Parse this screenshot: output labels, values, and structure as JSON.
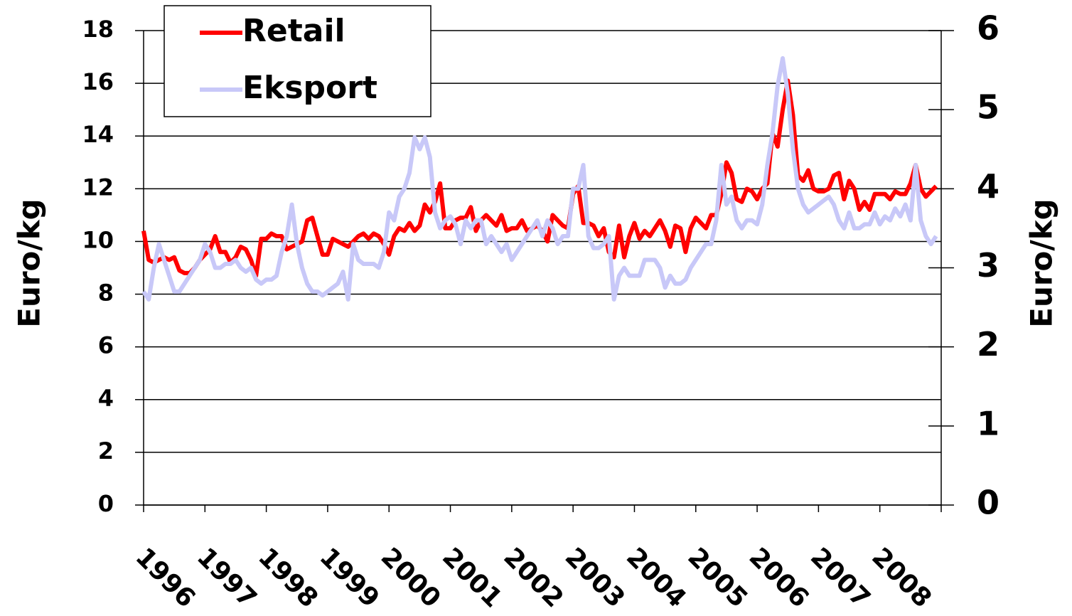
{
  "chart_data": {
    "type": "line",
    "categories": [
      "1996",
      null,
      null,
      null,
      null,
      null,
      null,
      null,
      null,
      null,
      null,
      null,
      "1997",
      null,
      null,
      null,
      null,
      null,
      null,
      null,
      null,
      null,
      null,
      null,
      "1998",
      null,
      null,
      null,
      null,
      null,
      null,
      null,
      null,
      null,
      null,
      null,
      "1999",
      null,
      null,
      null,
      null,
      null,
      null,
      null,
      null,
      null,
      null,
      null,
      "2000",
      null,
      null,
      null,
      null,
      null,
      null,
      null,
      null,
      null,
      null,
      null,
      "2001",
      null,
      null,
      null,
      null,
      null,
      null,
      null,
      null,
      null,
      null,
      null,
      "2002",
      null,
      null,
      null,
      null,
      null,
      null,
      null,
      null,
      null,
      null,
      null,
      "2003",
      null,
      null,
      null,
      null,
      null,
      null,
      null,
      null,
      null,
      null,
      null,
      "2004",
      null,
      null,
      null,
      null,
      null,
      null,
      null,
      null,
      null,
      null,
      null,
      "2005",
      null,
      null,
      null,
      null,
      null,
      null,
      null,
      null,
      null,
      null,
      null,
      "2006",
      null,
      null,
      null,
      null,
      null,
      null,
      null,
      null,
      null,
      null,
      null,
      "2007",
      null,
      null,
      null,
      null,
      null,
      null,
      null,
      null,
      null,
      null,
      null,
      "2008",
      null,
      null,
      null,
      null,
      null,
      null,
      null,
      null,
      null,
      null,
      null
    ],
    "series": [
      {
        "name": "Retail",
        "color": "#ff0000",
        "values": [
          10.4,
          9.3,
          9.2,
          9.3,
          9.4,
          9.3,
          9.4,
          8.9,
          8.8,
          8.8,
          9.0,
          9.3,
          9.5,
          9.7,
          10.2,
          9.6,
          9.6,
          9.2,
          9.4,
          9.8,
          9.7,
          9.3,
          8.7,
          10.1,
          10.1,
          10.3,
          10.2,
          10.2,
          9.7,
          9.8,
          9.9,
          10.0,
          10.8,
          10.9,
          10.2,
          9.5,
          9.5,
          10.1,
          10.0,
          9.9,
          9.8,
          10.0,
          10.2,
          10.3,
          10.1,
          10.3,
          10.2,
          9.9,
          9.5,
          10.2,
          10.5,
          10.4,
          10.7,
          10.4,
          10.6,
          11.4,
          11.1,
          11.5,
          12.2,
          10.5,
          10.5,
          10.8,
          10.9,
          10.9,
          11.3,
          10.4,
          10.8,
          11.0,
          10.8,
          10.6,
          11.0,
          10.4,
          10.5,
          10.5,
          10.8,
          10.4,
          10.5,
          10.6,
          10.4,
          10.0,
          11.0,
          10.8,
          10.6,
          10.5,
          11.8,
          12.1,
          10.7,
          10.7,
          10.6,
          10.2,
          10.5,
          9.6,
          9.4,
          10.6,
          9.4,
          10.2,
          10.7,
          10.1,
          10.4,
          10.2,
          10.5,
          10.8,
          10.4,
          9.8,
          10.6,
          10.5,
          9.6,
          10.5,
          10.9,
          10.7,
          10.5,
          11.0,
          11.0,
          11.8,
          13.0,
          12.6,
          11.6,
          11.5,
          12.0,
          11.9,
          11.6,
          12.0,
          12.2,
          14.1,
          13.6,
          15.0,
          16.1,
          14.8,
          12.5,
          12.3,
          12.7,
          12.0,
          11.9,
          11.9,
          12.0,
          12.5,
          12.6,
          11.6,
          12.3,
          12.0,
          11.2,
          11.5,
          11.2,
          11.8,
          11.8,
          11.8,
          11.6,
          11.9,
          11.8,
          11.8,
          12.2,
          12.9,
          12.0,
          11.7,
          11.9,
          12.1
        ]
      },
      {
        "name": "Eksport",
        "color": "#c8c8f8",
        "axis": "y2",
        "values": [
          2.7,
          2.6,
          3.0,
          3.3,
          3.1,
          2.9,
          2.7,
          2.7,
          2.8,
          2.9,
          3.0,
          3.1,
          3.3,
          3.2,
          3.0,
          3.0,
          3.05,
          3.05,
          3.1,
          3.0,
          2.95,
          3.0,
          2.85,
          2.8,
          2.85,
          2.85,
          2.9,
          3.2,
          3.4,
          3.8,
          3.3,
          3.0,
          2.8,
          2.7,
          2.7,
          2.65,
          2.7,
          2.75,
          2.8,
          2.95,
          2.6,
          3.3,
          3.1,
          3.05,
          3.05,
          3.05,
          3.0,
          3.2,
          3.7,
          3.6,
          3.9,
          4.0,
          4.2,
          4.65,
          4.5,
          4.65,
          4.4,
          3.7,
          3.5,
          3.6,
          3.65,
          3.55,
          3.3,
          3.6,
          3.5,
          3.6,
          3.6,
          3.3,
          3.4,
          3.3,
          3.2,
          3.3,
          3.1,
          3.2,
          3.3,
          3.4,
          3.5,
          3.6,
          3.4,
          3.6,
          3.5,
          3.3,
          3.4,
          3.4,
          4.0,
          4.0,
          4.3,
          3.4,
          3.25,
          3.25,
          3.3,
          3.4,
          2.6,
          2.9,
          3.0,
          2.9,
          2.9,
          2.9,
          3.1,
          3.1,
          3.1,
          3.0,
          2.75,
          2.9,
          2.8,
          2.8,
          2.85,
          3.0,
          3.1,
          3.2,
          3.3,
          3.3,
          3.6,
          4.3,
          3.8,
          3.9,
          3.6,
          3.5,
          3.6,
          3.6,
          3.55,
          3.8,
          4.3,
          4.7,
          5.3,
          5.65,
          5.2,
          4.5,
          4.0,
          3.8,
          3.7,
          3.75,
          3.8,
          3.85,
          3.9,
          3.8,
          3.6,
          3.5,
          3.7,
          3.5,
          3.5,
          3.55,
          3.55,
          3.7,
          3.55,
          3.65,
          3.6,
          3.75,
          3.65,
          3.8,
          3.6,
          4.3,
          3.6,
          3.4,
          3.3,
          3.4
        ]
      }
    ],
    "ylabel": "Euro/kg",
    "y2label": "Euro/kg",
    "ylim": [
      0,
      18
    ],
    "yticks": [
      0,
      2,
      4,
      6,
      8,
      10,
      12,
      14,
      16,
      18
    ],
    "y2lim": [
      0,
      6
    ],
    "y2ticks": [
      0,
      1,
      2,
      3,
      4,
      5,
      6
    ],
    "grid": true,
    "legend": "upper left"
  }
}
